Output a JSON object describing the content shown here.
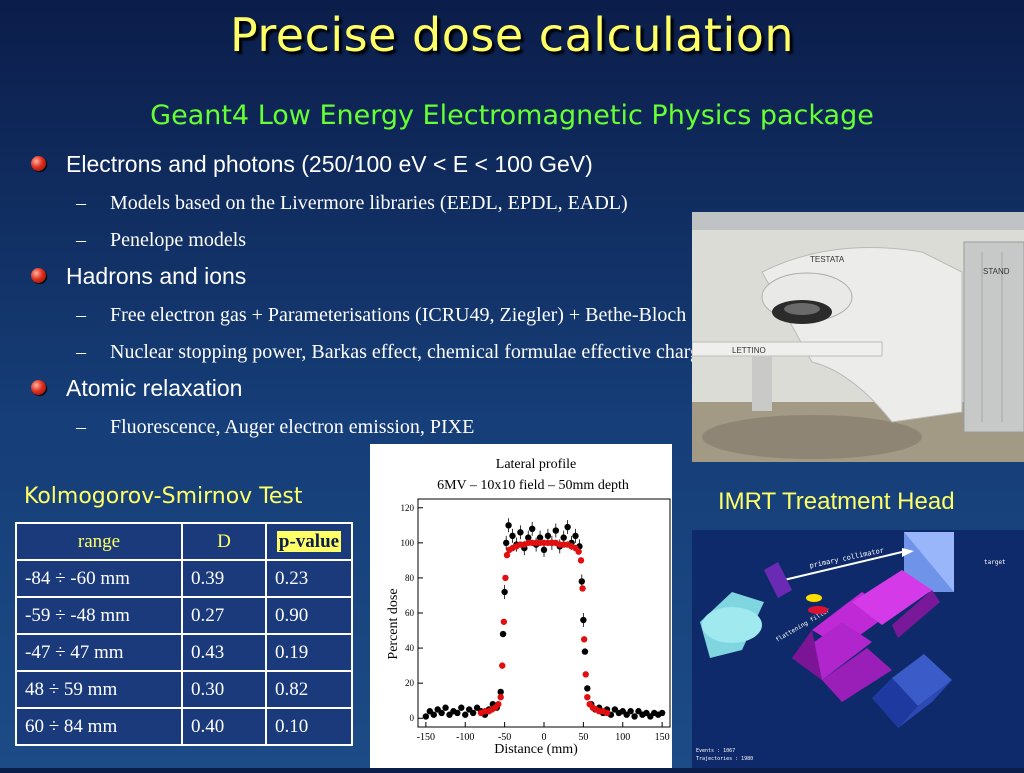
{
  "slide": {
    "title": "Precise dose calculation",
    "subtitle": "Geant4 Low Energy Electromagnetic Physics package",
    "bullets": [
      {
        "text": "Electrons and photons (250/100 eV < E < 100 GeV)",
        "sub": [
          "Models based on the Livermore libraries (EEDL, EPDL, EADL)",
          "Penelope models"
        ]
      },
      {
        "text": "Hadrons and ions",
        "sub": [
          "Free electron gas + Parameterisations (ICRU49, Ziegler) + Bethe-Bloch",
          "Nuclear stopping power, Barkas effect, chemical formulae effective charge etc."
        ]
      },
      {
        "text": "Atomic relaxation",
        "sub": [
          "Fluorescence, Auger electron emission, PIXE"
        ]
      }
    ],
    "dash": "–"
  },
  "photo": {
    "labels": [
      "TESTATA",
      "STAND",
      "LETTINO"
    ]
  },
  "ks_test": {
    "title": "Kolmogorov-Smirnov Test",
    "headers": [
      "range",
      "D",
      "p-value"
    ],
    "rows": [
      [
        "-84 ÷ -60 mm",
        "0.39",
        "0.23"
      ],
      [
        "-59 ÷ -48 mm",
        "0.27",
        "0.90"
      ],
      [
        "-47 ÷ 47 mm",
        "0.43",
        "0.19"
      ],
      [
        "48 ÷ 59 mm",
        "0.30",
        "0.82"
      ],
      [
        "60 ÷ 84 mm",
        "0.40",
        "0.10"
      ]
    ]
  },
  "imrt": {
    "title": "IMRT Treatment Head",
    "labels": [
      "primary collimator",
      "target",
      "flattening filter"
    ],
    "readout": [
      "Events : 1067",
      "Trajectories : 1980"
    ]
  },
  "chart_data": {
    "type": "scatter",
    "title": "Lateral profile",
    "subtitle": "6MV – 10x10 field – 50mm depth",
    "xlabel": "Distance (mm)",
    "ylabel": "Percent dose",
    "xlim": [
      -160,
      160
    ],
    "ylim": [
      -5,
      125
    ],
    "xticks": [
      -150,
      -100,
      -50,
      0,
      50,
      100,
      150
    ],
    "yticks": [
      0,
      20,
      40,
      60,
      80,
      100,
      120
    ],
    "series": [
      {
        "color": "#000000",
        "points": [
          [
            -150,
            1
          ],
          [
            -145,
            4
          ],
          [
            -140,
            2
          ],
          [
            -135,
            5
          ],
          [
            -130,
            3
          ],
          [
            -125,
            6
          ],
          [
            -120,
            2
          ],
          [
            -115,
            4
          ],
          [
            -110,
            3
          ],
          [
            -105,
            6
          ],
          [
            -100,
            2
          ],
          [
            -95,
            5
          ],
          [
            -90,
            3
          ],
          [
            -85,
            6
          ],
          [
            -80,
            4
          ],
          [
            -75,
            2
          ],
          [
            -70,
            5
          ],
          [
            -65,
            8
          ],
          [
            -60,
            6
          ],
          [
            -55,
            15
          ],
          [
            -52,
            48
          ],
          [
            -50,
            72
          ],
          [
            -48,
            100
          ],
          [
            -45,
            110
          ],
          [
            -40,
            104
          ],
          [
            -35,
            99
          ],
          [
            -30,
            106
          ],
          [
            -25,
            97
          ],
          [
            -20,
            103
          ],
          [
            -15,
            108
          ],
          [
            -10,
            99
          ],
          [
            -5,
            103
          ],
          [
            0,
            96
          ],
          [
            5,
            104
          ],
          [
            10,
            100
          ],
          [
            15,
            107
          ],
          [
            20,
            98
          ],
          [
            25,
            103
          ],
          [
            30,
            109
          ],
          [
            35,
            100
          ],
          [
            40,
            104
          ],
          [
            45,
            98
          ],
          [
            48,
            78
          ],
          [
            50,
            56
          ],
          [
            52,
            38
          ],
          [
            55,
            17
          ],
          [
            60,
            8
          ],
          [
            65,
            5
          ],
          [
            70,
            6
          ],
          [
            75,
            3
          ],
          [
            80,
            5
          ],
          [
            85,
            2
          ],
          [
            90,
            5
          ],
          [
            95,
            3
          ],
          [
            100,
            4
          ],
          [
            105,
            2
          ],
          [
            110,
            4
          ],
          [
            115,
            1
          ],
          [
            120,
            4
          ],
          [
            125,
            2
          ],
          [
            130,
            3
          ],
          [
            135,
            1
          ],
          [
            140,
            3
          ],
          [
            145,
            2
          ],
          [
            150,
            3
          ]
        ]
      },
      {
        "color": "#e01010",
        "points": [
          [
            -80,
            3
          ],
          [
            -75,
            4
          ],
          [
            -70,
            4
          ],
          [
            -66,
            5
          ],
          [
            -62,
            6
          ],
          [
            -58,
            8
          ],
          [
            -55,
            12
          ],
          [
            -53,
            30
          ],
          [
            -51,
            55
          ],
          [
            -49,
            80
          ],
          [
            -47,
            93
          ],
          [
            -44,
            96
          ],
          [
            -40,
            97
          ],
          [
            -35,
            98
          ],
          [
            -30,
            99
          ],
          [
            -25,
            99
          ],
          [
            -20,
            100
          ],
          [
            -15,
            100
          ],
          [
            -10,
            100
          ],
          [
            -5,
            100
          ],
          [
            0,
            100
          ],
          [
            5,
            100
          ],
          [
            10,
            100
          ],
          [
            15,
            100
          ],
          [
            20,
            99
          ],
          [
            25,
            99
          ],
          [
            30,
            99
          ],
          [
            35,
            98
          ],
          [
            40,
            97
          ],
          [
            44,
            95
          ],
          [
            47,
            90
          ],
          [
            49,
            74
          ],
          [
            51,
            45
          ],
          [
            53,
            25
          ],
          [
            55,
            12
          ],
          [
            58,
            8
          ],
          [
            62,
            6
          ],
          [
            66,
            5
          ],
          [
            70,
            4
          ],
          [
            75,
            4
          ],
          [
            80,
            3
          ]
        ]
      }
    ]
  }
}
